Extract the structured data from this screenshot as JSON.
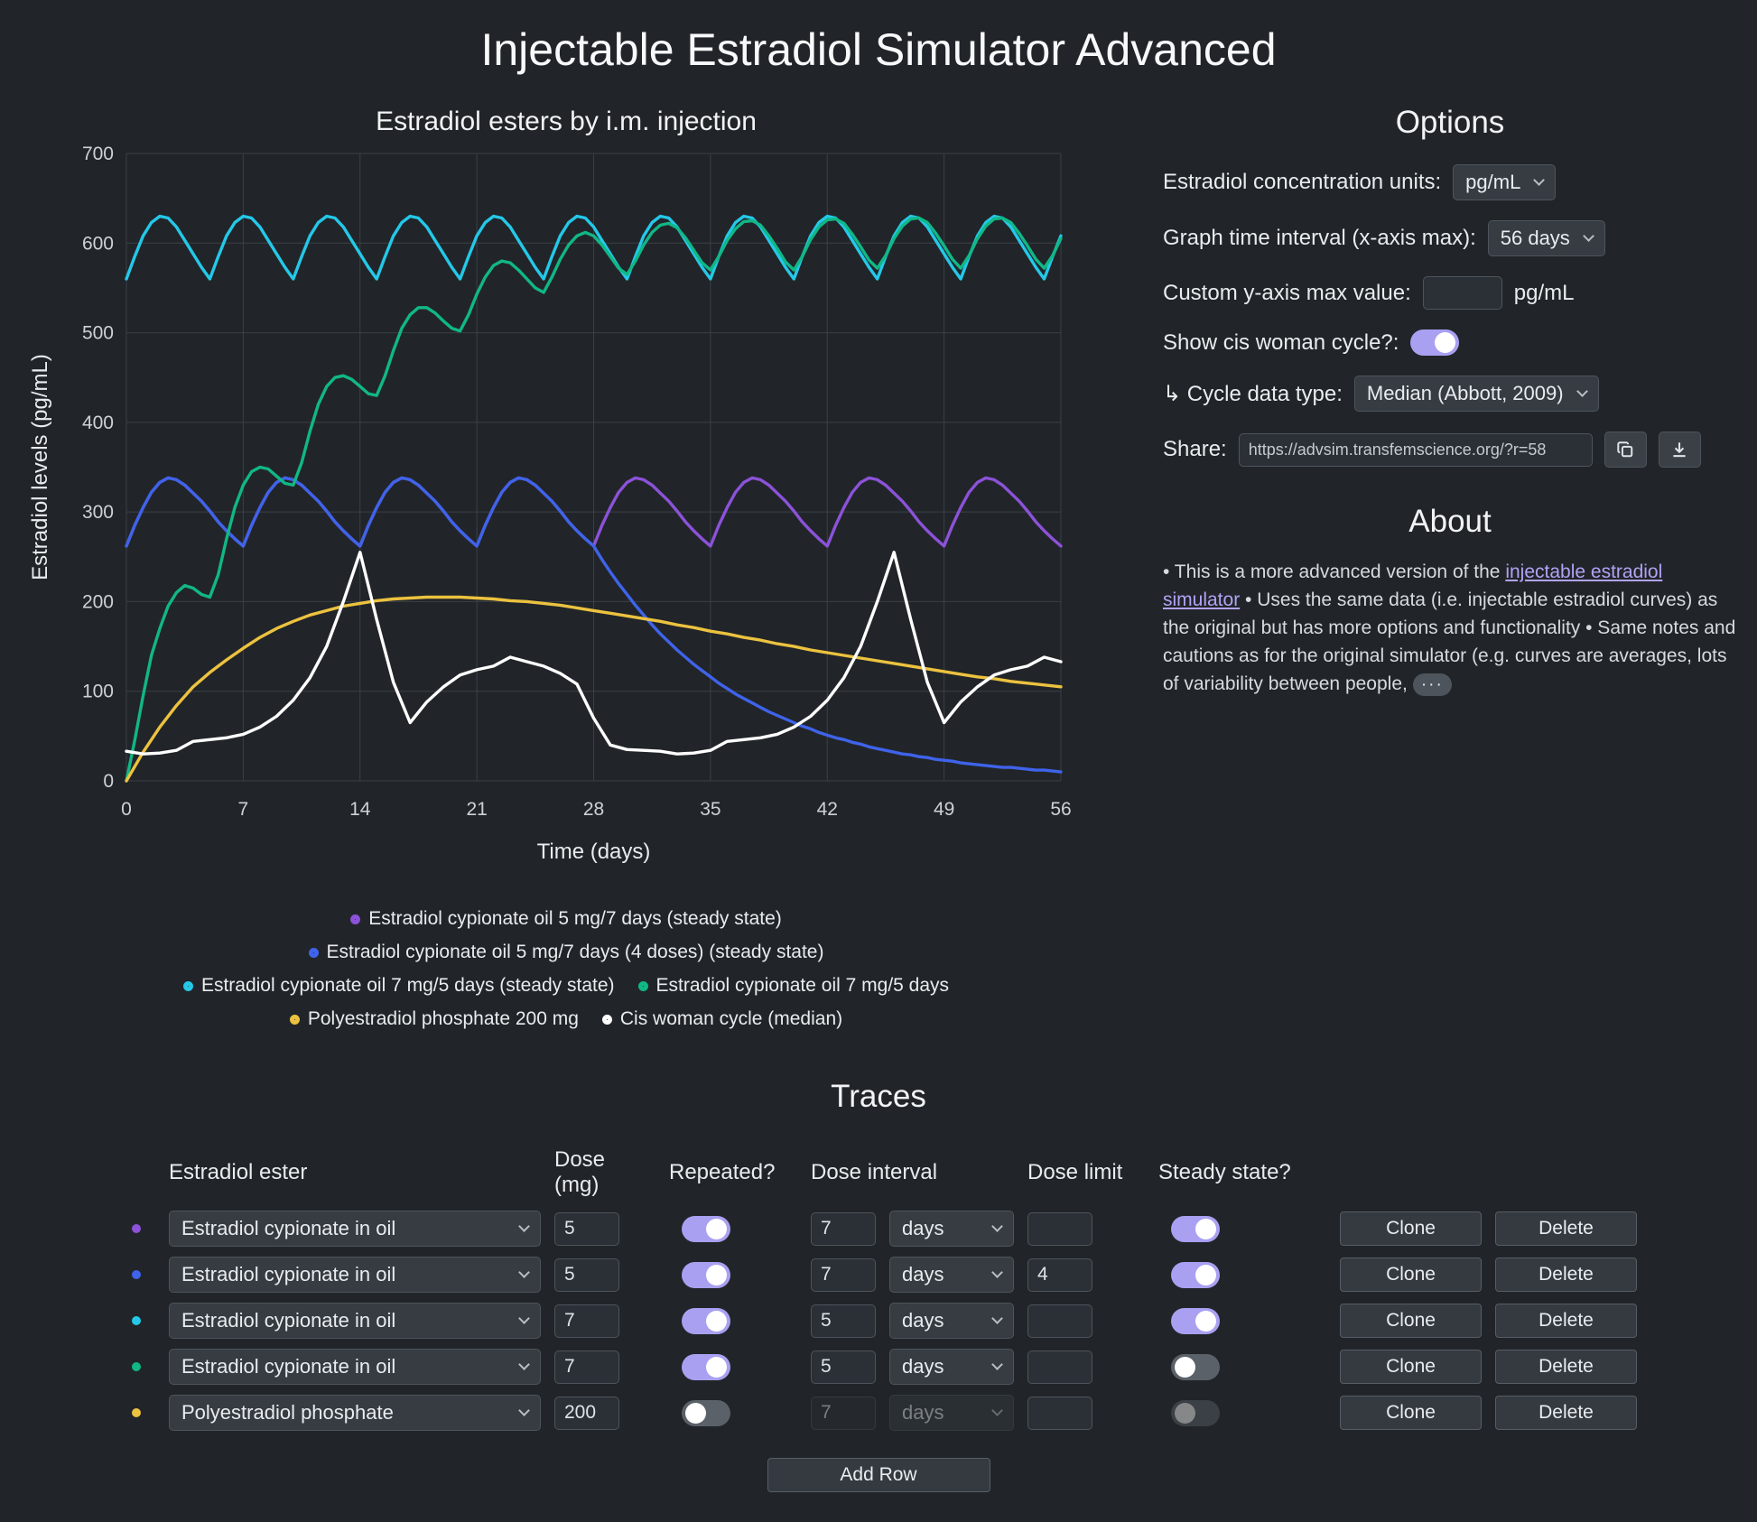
{
  "theme": {
    "bg": "#212529",
    "text": "#e9ecef",
    "grid": "#3a4047",
    "control_bg": "#363c42",
    "control_border": "#4d545b",
    "accent": "#a9a0f2",
    "link": "#b0a3f5"
  },
  "page": {
    "title": "Injectable Estradiol Simulator Advanced"
  },
  "chart_data": {
    "type": "line",
    "title": "Estradiol esters by i.m. injection",
    "xlabel": "Time (days)",
    "ylabel": "Estradiol levels (pg/mL)",
    "xlim": [
      0,
      56
    ],
    "ylim": [
      0,
      700
    ],
    "xtick": 7,
    "ytick": 100,
    "grid": true,
    "legend_position": "bottom",
    "series": [
      {
        "name": "Estradiol cypionate oil 5 mg/7 days (steady state)",
        "color": "#8c52d9",
        "x0": 0,
        "dx": 0.5,
        "values": [
          262,
          285,
          305,
          322,
          333,
          338,
          336,
          330,
          321,
          312,
          301,
          289,
          279,
          270,
          262,
          285,
          305,
          322,
          333,
          338,
          336,
          330,
          321,
          312,
          301,
          289,
          279,
          270,
          262,
          285,
          305,
          322,
          333,
          338,
          336,
          330,
          321,
          312,
          301,
          289,
          279,
          270,
          262,
          285,
          305,
          322,
          333,
          338,
          336,
          330,
          321,
          312,
          301,
          289,
          279,
          270,
          262,
          285,
          305,
          322,
          333,
          338,
          336,
          330,
          321,
          312,
          301,
          289,
          279,
          270,
          262,
          285,
          305,
          322,
          333,
          338,
          336,
          330,
          321,
          312,
          301,
          289,
          279,
          270,
          262,
          285,
          305,
          322,
          333,
          338,
          336,
          330,
          321,
          312,
          301,
          289,
          279,
          270,
          262,
          285,
          305,
          322,
          333,
          338,
          336,
          330,
          321,
          312,
          301,
          289,
          279,
          270,
          262
        ]
      },
      {
        "name": "Estradiol cypionate oil 5 mg/7 days (4 doses) (steady state)",
        "color": "#3f63ea",
        "x0": 0,
        "dx": 0.5,
        "values": [
          262,
          285,
          305,
          322,
          333,
          338,
          336,
          330,
          321,
          312,
          301,
          289,
          279,
          270,
          262,
          285,
          305,
          322,
          333,
          338,
          336,
          330,
          321,
          312,
          301,
          289,
          279,
          270,
          262,
          285,
          305,
          322,
          333,
          338,
          336,
          330,
          321,
          312,
          301,
          289,
          279,
          270,
          262,
          285,
          305,
          322,
          333,
          338,
          336,
          330,
          321,
          312,
          301,
          289,
          279,
          270,
          262,
          247,
          233,
          220,
          208,
          196,
          185,
          174,
          164,
          155,
          146,
          138,
          130,
          123,
          116,
          109,
          103,
          97,
          92,
          87,
          82,
          77,
          73,
          69,
          65,
          61,
          58,
          54,
          51,
          48,
          46,
          43,
          41,
          38,
          36,
          34,
          32,
          30,
          29,
          27,
          26,
          24,
          23,
          22,
          20,
          19,
          18,
          17,
          16,
          15,
          15,
          14,
          13,
          12,
          12,
          11,
          10
        ]
      },
      {
        "name": "Estradiol cypionate oil 7 mg/5 days (steady state)",
        "color": "#24c8e8",
        "x0": 0,
        "dx": 0.5,
        "values": [
          560,
          585,
          608,
          623,
          630,
          628,
          618,
          603,
          588,
          573,
          560,
          585,
          608,
          623,
          630,
          628,
          618,
          603,
          588,
          573,
          560,
          585,
          608,
          623,
          630,
          628,
          618,
          603,
          588,
          573,
          560,
          585,
          608,
          623,
          630,
          628,
          618,
          603,
          588,
          573,
          560,
          585,
          608,
          623,
          630,
          628,
          618,
          603,
          588,
          573,
          560,
          585,
          608,
          623,
          630,
          628,
          618,
          603,
          588,
          573,
          560,
          585,
          608,
          623,
          630,
          628,
          618,
          603,
          588,
          573,
          560,
          585,
          608,
          623,
          630,
          628,
          618,
          603,
          588,
          573,
          560,
          585,
          608,
          623,
          630,
          628,
          618,
          603,
          588,
          573,
          560,
          585,
          608,
          623,
          630,
          628,
          618,
          603,
          588,
          573,
          560,
          585,
          608,
          623,
          630,
          628,
          618,
          603,
          588,
          573,
          560,
          585,
          608
        ]
      },
      {
        "name": "Estradiol cypionate oil 7 mg/5 days",
        "color": "#11b786",
        "x0": 0,
        "dx": 0.5,
        "values": [
          0,
          45,
          95,
          140,
          170,
          195,
          210,
          218,
          215,
          208,
          205,
          230,
          270,
          305,
          330,
          345,
          350,
          348,
          340,
          332,
          330,
          355,
          390,
          420,
          440,
          450,
          452,
          448,
          440,
          432,
          430,
          452,
          480,
          505,
          520,
          528,
          528,
          522,
          513,
          505,
          502,
          520,
          543,
          562,
          575,
          580,
          578,
          570,
          560,
          550,
          545,
          562,
          582,
          598,
          608,
          612,
          608,
          598,
          585,
          572,
          565,
          580,
          598,
          612,
          620,
          622,
          617,
          606,
          592,
          578,
          570,
          585,
          603,
          616,
          624,
          625,
          620,
          608,
          594,
          579,
          570,
          585,
          604,
          618,
          626,
          627,
          622,
          610,
          596,
          581,
          572,
          586,
          605,
          619,
          627,
          628,
          623,
          611,
          597,
          582,
          572,
          586,
          605,
          619,
          627,
          628,
          623,
          611,
          597,
          582,
          572,
          586,
          605
        ]
      },
      {
        "name": "Polyestradiol phosphate 200 mg",
        "color": "#ecc23f",
        "x0": 0,
        "dx": 1,
        "values": [
          0,
          32,
          60,
          84,
          105,
          121,
          135,
          148,
          160,
          170,
          178,
          185,
          190,
          195,
          198,
          201,
          203,
          204,
          205,
          205,
          205,
          204,
          203,
          201,
          200,
          198,
          196,
          193,
          190,
          187,
          184,
          181,
          178,
          174,
          171,
          167,
          164,
          160,
          157,
          153,
          150,
          146,
          143,
          140,
          137,
          134,
          131,
          128,
          125,
          122,
          119,
          116,
          114,
          111,
          109,
          107,
          105
        ]
      },
      {
        "name": "Cis woman cycle (median)",
        "color": "#ffffff",
        "x0": 0,
        "dx": 1,
        "values": [
          33,
          30,
          31,
          34,
          44,
          46,
          48,
          52,
          60,
          72,
          90,
          115,
          150,
          200,
          255,
          180,
          110,
          65,
          88,
          105,
          118,
          124,
          128,
          138,
          133,
          128,
          120,
          108,
          70,
          40,
          35,
          34,
          33,
          30,
          31,
          34,
          44,
          46,
          48,
          52,
          60,
          72,
          90,
          115,
          150,
          200,
          255,
          180,
          110,
          65,
          88,
          105,
          118,
          124,
          128,
          138,
          133
        ]
      }
    ]
  },
  "options": {
    "heading": "Options",
    "units_label": "Estradiol concentration units:",
    "units_value": "pg/mL",
    "interval_label": "Graph time interval (x-axis max):",
    "interval_value": "56 days",
    "ymax_label": "Custom y-axis max value:",
    "ymax_value": "",
    "ymax_suffix": "pg/mL",
    "cycle_label": "Show cis woman cycle?:",
    "cycle_on": true,
    "cycle_type_label": "↳ Cycle data type:",
    "cycle_type_value": "Median (Abbott, 2009)",
    "share_label": "Share:",
    "share_url": "https://advsim.transfemscience.org/?r=58"
  },
  "about": {
    "heading": "About",
    "text_before": "• This is a more advanced version of the ",
    "link_text": "injectable estradiol simulator",
    "text_after": " • Uses the same data (i.e. injectable estradiol curves) as the original but has more options and functionality • Same notes and cautions as for the original simulator (e.g. curves are averages, lots of variability between people,",
    "more_label": "···"
  },
  "traces": {
    "heading": "Traces",
    "headers": {
      "ester": "Estradiol ester",
      "dose": "Dose (mg)",
      "repeated": "Repeated?",
      "interval": "Dose interval",
      "limit": "Dose limit",
      "steady": "Steady state?"
    },
    "clone_label": "Clone",
    "delete_label": "Delete",
    "add_row_label": "Add Row",
    "rows": [
      {
        "color": "#8c52d9",
        "ester": "Estradiol cypionate in oil",
        "dose": "5",
        "repeated": true,
        "interval": "7",
        "interval_unit": "days",
        "interval_disabled": false,
        "limit": "",
        "steady": true,
        "steady_disabled": false
      },
      {
        "color": "#3f63ea",
        "ester": "Estradiol cypionate in oil",
        "dose": "5",
        "repeated": true,
        "interval": "7",
        "interval_unit": "days",
        "interval_disabled": false,
        "limit": "4",
        "steady": true,
        "steady_disabled": false
      },
      {
        "color": "#24c8e8",
        "ester": "Estradiol cypionate in oil",
        "dose": "7",
        "repeated": true,
        "interval": "5",
        "interval_unit": "days",
        "interval_disabled": false,
        "limit": "",
        "steady": true,
        "steady_disabled": false
      },
      {
        "color": "#11b786",
        "ester": "Estradiol cypionate in oil",
        "dose": "7",
        "repeated": true,
        "interval": "5",
        "interval_unit": "days",
        "interval_disabled": false,
        "limit": "",
        "steady": false,
        "steady_disabled": false
      },
      {
        "color": "#ecc23f",
        "ester": "Polyestradiol phosphate",
        "dose": "200",
        "repeated": false,
        "interval": "7",
        "interval_unit": "days",
        "interval_disabled": true,
        "limit": "",
        "steady": false,
        "steady_disabled": true
      }
    ]
  }
}
